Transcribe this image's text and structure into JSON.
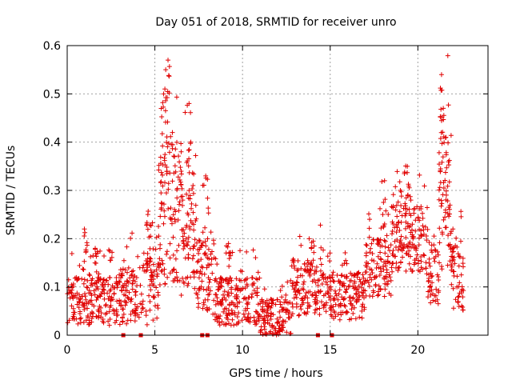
{
  "chart_data": {
    "type": "scatter",
    "title": "Day 051 of 2018, SRMTID for receiver unro",
    "xlabel": "GPS time / hours",
    "ylabel": "SRMTID / TECUs",
    "xlim": [
      0,
      24
    ],
    "ylim": [
      0,
      0.6
    ],
    "xticks": [
      0,
      5,
      10,
      15,
      20
    ],
    "yticks": [
      0,
      0.1,
      0.2,
      0.3,
      0.4,
      0.5,
      0.6
    ],
    "xtick_labels": [
      "0",
      "5",
      "10",
      "15",
      "20"
    ],
    "ytick_labels": [
      "0",
      "0.1",
      "0.2",
      "0.3",
      "0.4",
      "0.5",
      "0.6"
    ],
    "grid": true,
    "marker_color": "#e00000",
    "series": [
      {
        "name": "SRMTID",
        "marker": "plus",
        "segments": [
          {
            "t_start": 0.0,
            "t_end": 3.1,
            "base": 0.07,
            "spread": 0.05
          },
          {
            "t_start": 3.1,
            "t_end": 4.3,
            "base": 0.08,
            "spread": 0.06
          },
          {
            "t_start": 4.3,
            "t_end": 5.2,
            "base": 0.1,
            "spread": 0.08
          },
          {
            "t_start": 5.2,
            "t_end": 6.5,
            "base": 0.25,
            "spread": 0.15
          },
          {
            "t_start": 6.5,
            "t_end": 7.4,
            "base": 0.2,
            "spread": 0.12
          },
          {
            "t_start": 7.4,
            "t_end": 8.4,
            "base": 0.12,
            "spread": 0.08
          },
          {
            "t_start": 8.4,
            "t_end": 11.0,
            "base": 0.07,
            "spread": 0.05
          },
          {
            "t_start": 11.0,
            "t_end": 12.8,
            "base": 0.04,
            "spread": 0.04
          },
          {
            "t_start": 12.8,
            "t_end": 14.5,
            "base": 0.1,
            "spread": 0.06
          },
          {
            "t_start": 14.5,
            "t_end": 17.0,
            "base": 0.08,
            "spread": 0.05
          },
          {
            "t_start": 17.0,
            "t_end": 18.5,
            "base": 0.14,
            "spread": 0.06
          },
          {
            "t_start": 18.5,
            "t_end": 20.5,
            "base": 0.2,
            "spread": 0.07
          },
          {
            "t_start": 20.5,
            "t_end": 21.2,
            "base": 0.12,
            "spread": 0.07
          },
          {
            "t_start": 21.2,
            "t_end": 21.9,
            "base": 0.28,
            "spread": 0.15
          },
          {
            "t_start": 21.9,
            "t_end": 22.6,
            "base": 0.12,
            "spread": 0.07
          }
        ],
        "peaks": [
          {
            "x": 0.98,
            "y": 0.22
          },
          {
            "x": 1.6,
            "y": 0.18
          },
          {
            "x": 4.6,
            "y": 0.25
          },
          {
            "x": 5.5,
            "y": 0.5
          },
          {
            "x": 5.62,
            "y": 0.55
          },
          {
            "x": 5.75,
            "y": 0.57
          },
          {
            "x": 6.0,
            "y": 0.42
          },
          {
            "x": 6.5,
            "y": 0.38
          },
          {
            "x": 6.95,
            "y": 0.48
          },
          {
            "x": 7.05,
            "y": 0.4
          },
          {
            "x": 7.9,
            "y": 0.33
          },
          {
            "x": 9.2,
            "y": 0.19
          },
          {
            "x": 13.8,
            "y": 0.2
          },
          {
            "x": 18.1,
            "y": 0.32
          },
          {
            "x": 19.0,
            "y": 0.3
          },
          {
            "x": 19.4,
            "y": 0.35
          },
          {
            "x": 19.6,
            "y": 0.28
          },
          {
            "x": 21.35,
            "y": 0.54
          },
          {
            "x": 21.45,
            "y": 0.47
          },
          {
            "x": 21.6,
            "y": 0.41
          },
          {
            "x": 22.0,
            "y": 0.22
          }
        ]
      },
      {
        "name": "zero-level markers",
        "marker": "square",
        "x": [
          3.2,
          4.2,
          7.7,
          8.0,
          14.3,
          15.1
        ],
        "y": [
          0,
          0,
          0,
          0,
          0,
          0
        ]
      }
    ]
  }
}
